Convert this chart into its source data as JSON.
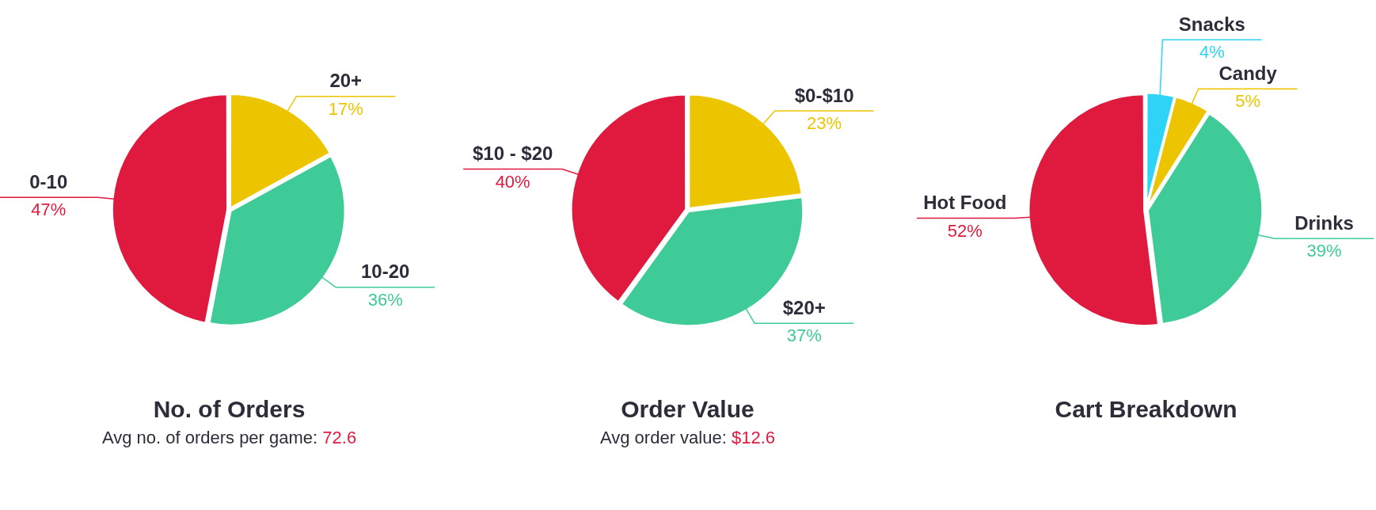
{
  "chart_data": [
    {
      "type": "pie",
      "title": "No. of Orders",
      "subtitle": "Avg no. of orders per game: 72.6",
      "categories": [
        "20+",
        "10-20",
        "0-10"
      ],
      "values": [
        17,
        36,
        47
      ],
      "value_labels": [
        "17%",
        "36%",
        "47%"
      ],
      "colors": [
        "#ecc500",
        "#3ecb98",
        "#e0193f"
      ]
    },
    {
      "type": "pie",
      "title": "Order Value",
      "subtitle": "Avg order value: $12.6",
      "categories": [
        "$0-$10",
        "$20+",
        "$10 - $20"
      ],
      "values": [
        23,
        37,
        40
      ],
      "value_labels": [
        "23%",
        "37%",
        "40%"
      ],
      "colors": [
        "#ecc500",
        "#3ecb98",
        "#e0193f"
      ]
    },
    {
      "type": "pie",
      "title": "Cart Breakdown",
      "categories": [
        "Snacks",
        "Candy",
        "Drinks",
        "Hot Food"
      ],
      "values": [
        4,
        5,
        39,
        52
      ],
      "value_labels": [
        "4%",
        "5%",
        "39%",
        "52%"
      ],
      "colors": [
        "#2dd4f5",
        "#ecc500",
        "#3ecb98",
        "#e0193f"
      ]
    }
  ]
}
